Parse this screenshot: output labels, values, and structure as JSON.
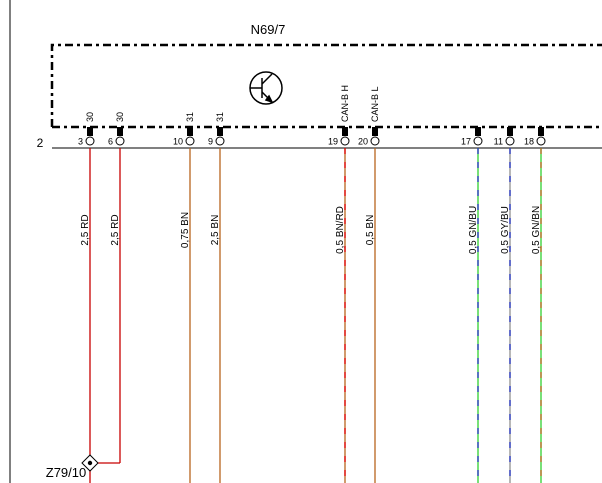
{
  "component": {
    "label": "N69/7"
  },
  "row_label": "2",
  "ground_label": "Z79/10",
  "pins": [
    {
      "pin": "3",
      "terminal": "30",
      "wire": "2,5 RD",
      "colors": [
        "#c80000"
      ]
    },
    {
      "pin": "6",
      "terminal": "30",
      "wire": "2,5 RD",
      "colors": [
        "#c80000"
      ]
    },
    {
      "pin": "10",
      "terminal": "31",
      "wire": "0,75 BN",
      "colors": [
        "#b8651e"
      ]
    },
    {
      "pin": "9",
      "terminal": "31",
      "wire": "2,5 BN",
      "colors": [
        "#b8651e"
      ]
    },
    {
      "pin": "19",
      "terminal": "CAN-B H",
      "wire": "0,5 BN/RD",
      "colors": [
        "#b8651e",
        "#e00000"
      ]
    },
    {
      "pin": "20",
      "terminal": "CAN-B L",
      "wire": "0,5 BN",
      "colors": [
        "#b8651e"
      ]
    },
    {
      "pin": "17",
      "terminal": "",
      "wire": "0,5 GN/BU",
      "colors": [
        "#30d030",
        "#2030c0"
      ]
    },
    {
      "pin": "11",
      "terminal": "",
      "wire": "0,5 GY/BU",
      "colors": [
        "#909090",
        "#2030c0"
      ]
    },
    {
      "pin": "18",
      "terminal": "",
      "wire": "0,5 GN/BN",
      "colors": [
        "#30d030",
        "#b8651e"
      ]
    }
  ]
}
